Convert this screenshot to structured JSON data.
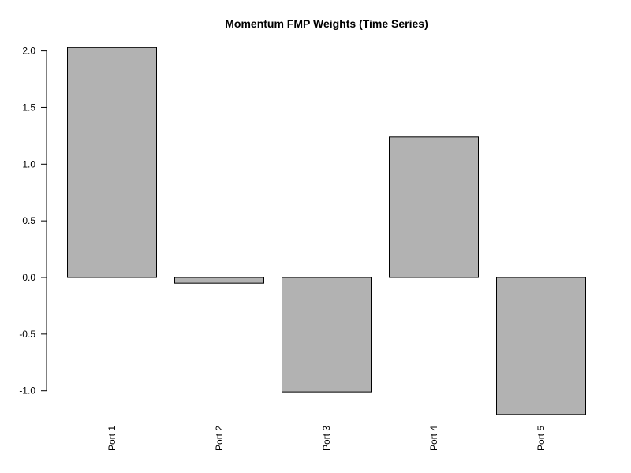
{
  "chart_data": {
    "type": "bar",
    "title": "Momentum FMP Weights (Time Series)",
    "xlabel": "",
    "ylabel": "",
    "categories": [
      "Port 1",
      "Port 2",
      "Port 3",
      "Port 4",
      "Port 5"
    ],
    "values": [
      2.03,
      -0.05,
      -1.01,
      1.24,
      -1.21
    ],
    "ylim": [
      -1.0,
      2.0
    ],
    "yticks": [
      -1.0,
      -0.5,
      0.0,
      0.5,
      1.0,
      1.5,
      2.0
    ],
    "ytick_labels": [
      "-1.0",
      "-0.5",
      "0.0",
      "0.5",
      "1.0",
      "1.5",
      "2.0"
    ],
    "x_tick_rotation": "vertical",
    "grid": false,
    "legend": "none",
    "bar_color": "#b2b2b2",
    "border_color": "#000000"
  }
}
